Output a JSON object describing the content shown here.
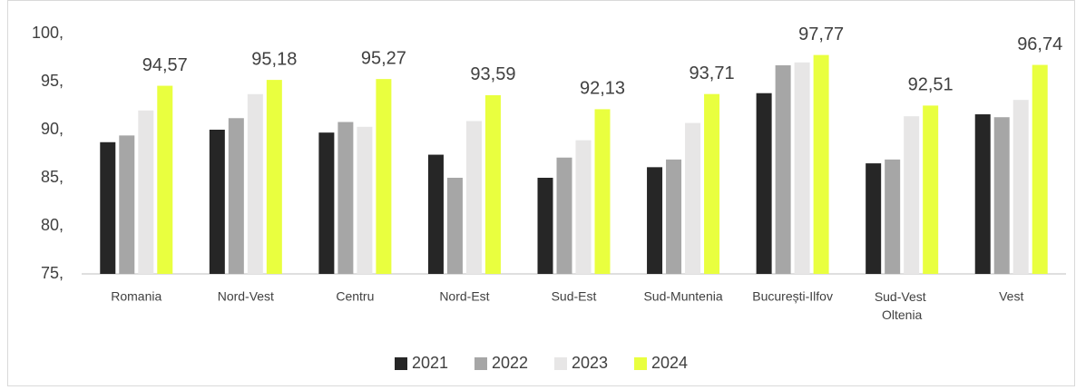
{
  "chart_data": {
    "type": "bar",
    "categories": [
      "Romania",
      "Nord-Vest",
      "Centru",
      "Nord-Est",
      "Sud-Est",
      "Sud-Muntenia",
      "București-Ilfov",
      "Sud-Vest Oltenia",
      "Vest"
    ],
    "series": [
      {
        "name": "2021",
        "color": "#262626",
        "values": [
          88.7,
          90.0,
          89.7,
          87.4,
          85.0,
          86.1,
          93.8,
          86.5,
          91.6
        ]
      },
      {
        "name": "2022",
        "color": "#a6a6a6",
        "values": [
          89.4,
          91.2,
          90.8,
          85.0,
          87.1,
          86.9,
          96.7,
          86.9,
          91.3
        ]
      },
      {
        "name": "2023",
        "color": "#e7e6e6",
        "values": [
          92.0,
          93.7,
          90.3,
          90.9,
          88.9,
          90.7,
          97.0,
          91.4,
          93.1
        ]
      },
      {
        "name": "2024",
        "color": "#e9ff3f",
        "values": [
          94.57,
          95.18,
          95.27,
          93.59,
          92.13,
          93.71,
          97.77,
          92.51,
          96.74
        ],
        "value_labels": [
          "94,57",
          "95,18",
          "95,27",
          "93,59",
          "92,13",
          "93,71",
          "97,77",
          "92,51",
          "96,74"
        ]
      }
    ],
    "ylim": [
      75,
      100
    ],
    "yticks": [
      {
        "value": 75,
        "label": "75,"
      },
      {
        "value": 80,
        "label": "80,"
      },
      {
        "value": 85,
        "label": "85,"
      },
      {
        "value": 90,
        "label": "90,"
      },
      {
        "value": 95,
        "label": "95,"
      },
      {
        "value": 100,
        "label": "100,"
      }
    ],
    "grid": false,
    "legend": "bottom"
  }
}
